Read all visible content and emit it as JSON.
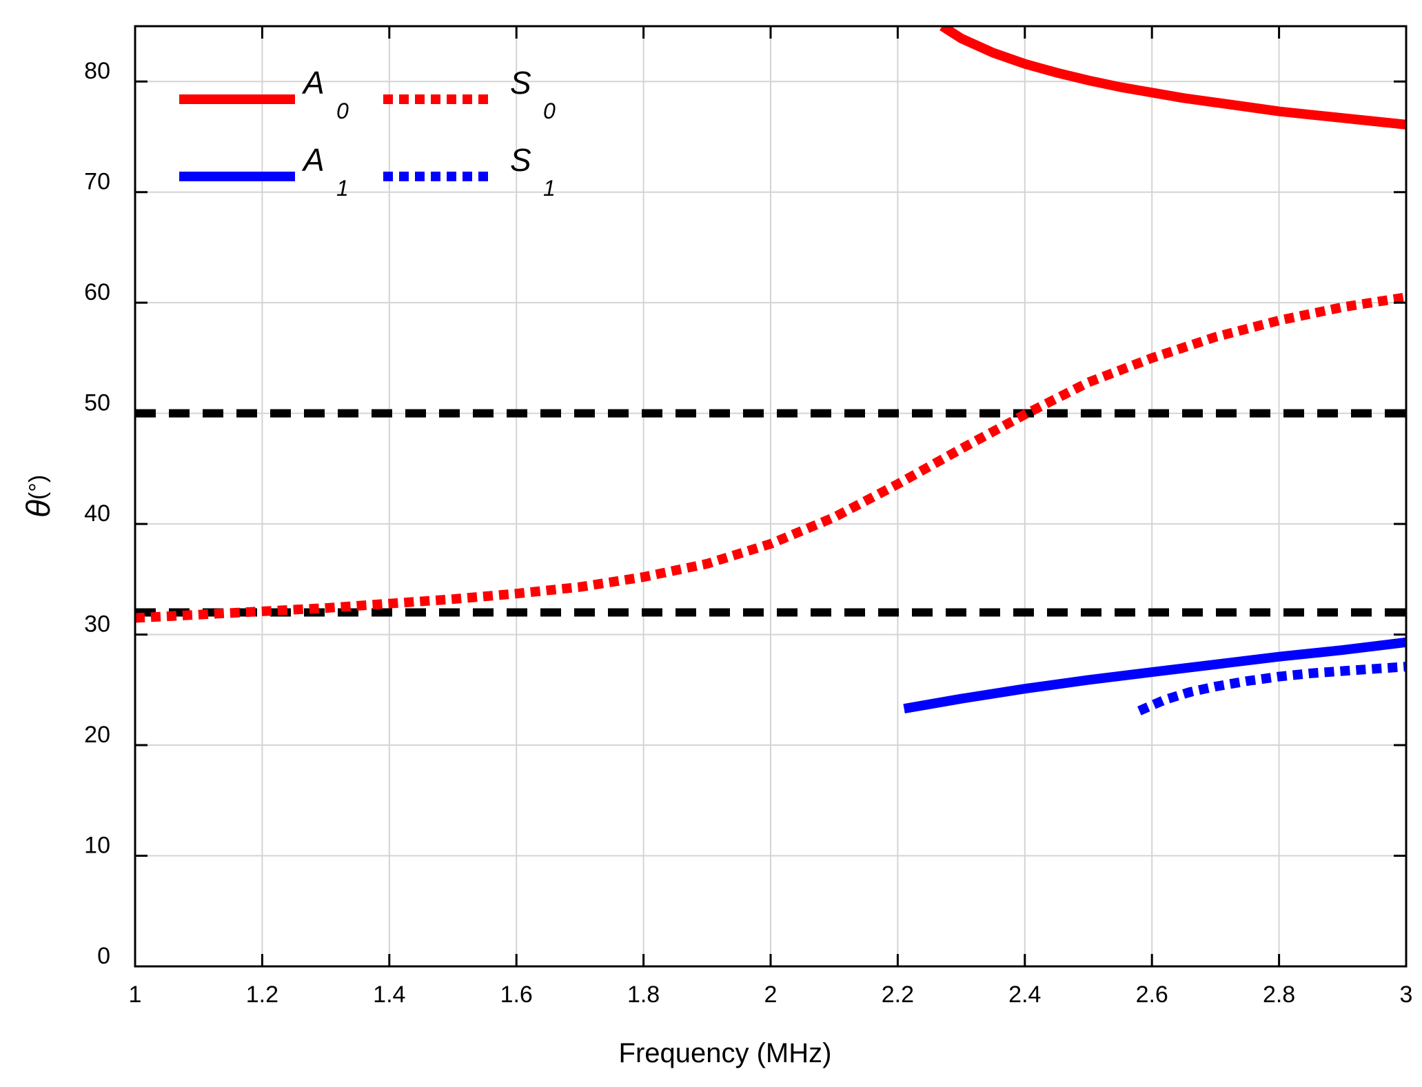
{
  "chart_data": {
    "type": "line",
    "title": "",
    "xlabel": "Frequency (MHz)",
    "ylabel_symbol": "θ",
    "ylabel_unit": "(°)",
    "xlim": [
      1,
      3
    ],
    "ylim": [
      0,
      85
    ],
    "x_ticks": [
      1,
      1.2,
      1.4,
      1.6,
      1.8,
      2,
      2.2,
      2.4,
      2.6,
      2.8,
      3
    ],
    "x_tick_labels": [
      "1",
      "1.2",
      "1.4",
      "1.6",
      "1.8",
      "2",
      "2.2",
      "2.4",
      "2.6",
      "2.8",
      "3"
    ],
    "y_ticks": [
      0,
      10,
      20,
      30,
      40,
      50,
      60,
      70,
      80
    ],
    "y_tick_labels": [
      "0",
      "10",
      "20",
      "30",
      "40",
      "50",
      "60",
      "70",
      "80"
    ],
    "grid": true,
    "legend_position": "top-left",
    "series": [
      {
        "name": "A0",
        "label_main": "A",
        "label_sub": "0",
        "color": "#ff0000",
        "style": "solid",
        "x": [
          2.27,
          2.3,
          2.35,
          2.4,
          2.45,
          2.5,
          2.55,
          2.6,
          2.65,
          2.7,
          2.75,
          2.8,
          2.85,
          2.9,
          2.95,
          3.0
        ],
        "y": [
          85,
          83.9,
          82.6,
          81.6,
          80.8,
          80.1,
          79.5,
          79.0,
          78.5,
          78.1,
          77.7,
          77.3,
          77.0,
          76.7,
          76.4,
          76.1
        ]
      },
      {
        "name": "S0",
        "label_main": "S",
        "label_sub": "0",
        "color": "#ff0000",
        "style": "dotted",
        "x": [
          1.0,
          1.1,
          1.2,
          1.3,
          1.4,
          1.5,
          1.6,
          1.7,
          1.8,
          1.9,
          2.0,
          2.1,
          2.2,
          2.3,
          2.4,
          2.5,
          2.6,
          2.7,
          2.8,
          2.9,
          3.0
        ],
        "y": [
          31.5,
          31.8,
          32.1,
          32.4,
          32.8,
          33.2,
          33.7,
          34.3,
          35.2,
          36.4,
          38.2,
          40.6,
          43.6,
          46.8,
          49.9,
          52.8,
          55.0,
          56.9,
          58.4,
          59.6,
          60.5
        ]
      },
      {
        "name": "A1",
        "label_main": "A",
        "label_sub": "1",
        "color": "#0000ff",
        "style": "solid",
        "x": [
          2.21,
          2.3,
          2.4,
          2.5,
          2.6,
          2.7,
          2.8,
          2.9,
          3.0
        ],
        "y": [
          23.3,
          24.2,
          25.1,
          25.9,
          26.6,
          27.3,
          28.0,
          28.6,
          29.3
        ]
      },
      {
        "name": "S1",
        "label_main": "S",
        "label_sub": "1",
        "color": "#0000ff",
        "style": "dotted",
        "x": [
          2.58,
          2.62,
          2.66,
          2.7,
          2.75,
          2.8,
          2.85,
          2.9,
          2.95,
          3.0
        ],
        "y": [
          23.1,
          24.1,
          24.8,
          25.3,
          25.8,
          26.2,
          26.5,
          26.7,
          26.9,
          27.1
        ]
      }
    ],
    "reference_lines": [
      {
        "y": 50,
        "color": "#000000",
        "style": "dashed"
      },
      {
        "y": 32,
        "color": "#000000",
        "style": "dashed"
      }
    ]
  }
}
